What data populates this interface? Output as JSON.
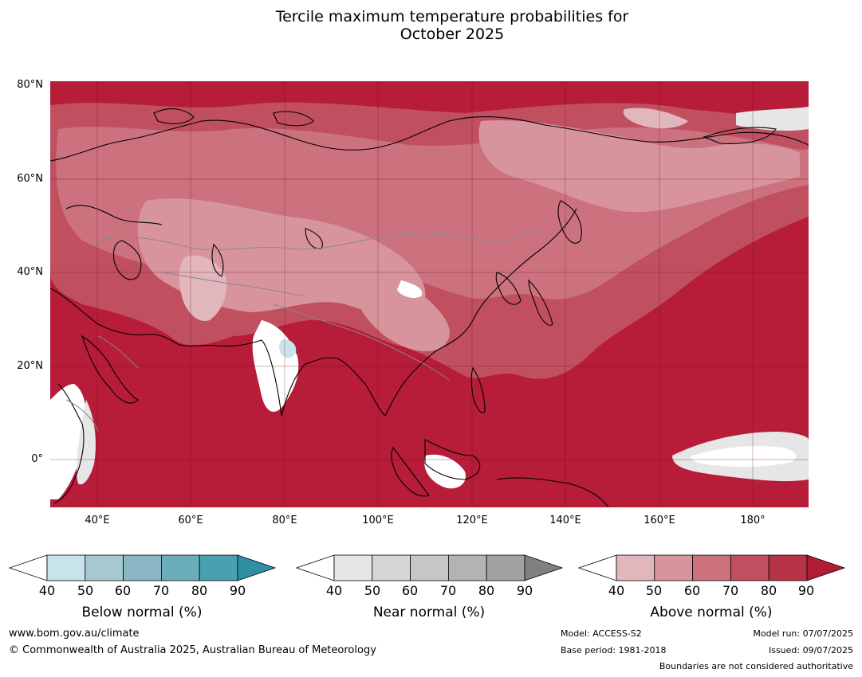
{
  "title": {
    "line1": "Tercile maximum temperature probabilities for",
    "line2": "October 2025"
  },
  "map": {
    "lat_labels": [
      "80°N",
      "60°N",
      "40°N",
      "20°N",
      "0°"
    ],
    "lon_labels": [
      "40°E",
      "60°E",
      "80°E",
      "100°E",
      "120°E",
      "140°E",
      "160°E",
      "180°"
    ],
    "ocean_color": "#b71c38"
  },
  "colorbars": [
    {
      "label": "Below normal (%)",
      "ticks": [
        "40",
        "50",
        "60",
        "70",
        "80",
        "90"
      ],
      "colors": [
        "#ffffff",
        "#c9e3ea",
        "#a6c9d2",
        "#8ab7c3",
        "#6cadbb",
        "#48a0b0",
        "#2f8fa3"
      ]
    },
    {
      "label": "Near normal (%)",
      "ticks": [
        "40",
        "50",
        "60",
        "70",
        "80",
        "90"
      ],
      "colors": [
        "#ffffff",
        "#e6e6e6",
        "#d6d6d6",
        "#c6c6c6",
        "#b3b3b3",
        "#a1a1a1",
        "#808080"
      ]
    },
    {
      "label": "Above normal (%)",
      "ticks": [
        "40",
        "50",
        "60",
        "70",
        "80",
        "90"
      ],
      "colors": [
        "#ffffff",
        "#e2b6bd",
        "#d8949d",
        "#cc717e",
        "#c04f60",
        "#b93346",
        "#b21a36"
      ]
    }
  ],
  "footer": {
    "website": "www.bom.gov.au/climate",
    "copyright": "© Commonwealth of Australia 2025, Australian Bureau of Meteorology",
    "model": "Model: ACCESS-S2",
    "base_period": "Base period: 1981-2018",
    "model_run": "Model run: 07/07/2025",
    "issued": "Issued: 09/07/2025",
    "disclaimer": "Boundaries are not considered authoritative"
  }
}
